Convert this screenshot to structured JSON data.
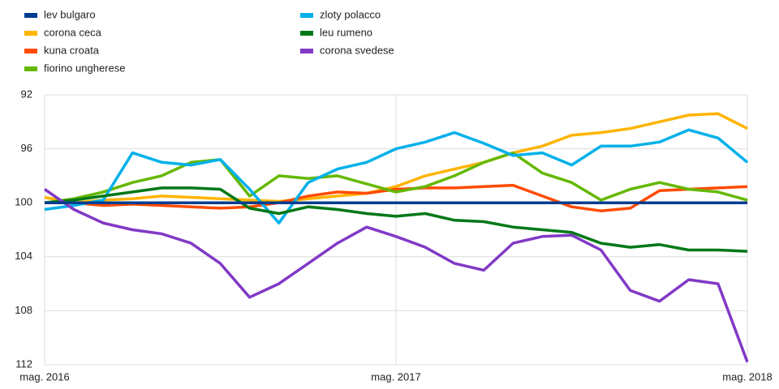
{
  "chart_data": {
    "type": "line",
    "categories": [
      "mag. 2016",
      null,
      null,
      null,
      null,
      null,
      null,
      null,
      null,
      null,
      null,
      null,
      "mag. 2017",
      null,
      null,
      null,
      null,
      null,
      null,
      null,
      null,
      null,
      null,
      null,
      "mag. 2018"
    ],
    "ylim": [
      112,
      92
    ],
    "yticks": [
      92,
      96,
      100,
      104,
      108,
      112
    ],
    "grid": true,
    "series": [
      {
        "name": "lev bulgaro",
        "color": "#003d8f",
        "values": [
          100,
          100,
          100,
          100,
          100,
          100,
          100,
          100,
          100,
          100,
          100,
          100,
          100,
          100,
          100,
          100,
          100,
          100,
          100,
          100,
          100,
          100,
          100,
          100,
          100
        ]
      },
      {
        "name": "corona ceca",
        "color": "#ffb400",
        "values": [
          99.6,
          100,
          99.8,
          99.7,
          99.5,
          99.6,
          99.7,
          99.8,
          99.9,
          99.7,
          99.5,
          99.3,
          98.8,
          98,
          97.5,
          97,
          96.3,
          95.8,
          95,
          94.8,
          94.5,
          94,
          93.5,
          93.4,
          94.5
        ]
      },
      {
        "name": "kuna croata",
        "color": "#ff4b00",
        "values": [
          100,
          100,
          100.2,
          100.1,
          100.2,
          100.3,
          100.4,
          100.3,
          100,
          99.5,
          99.2,
          99.3,
          99,
          98.9,
          98.9,
          98.8,
          98.7,
          99.5,
          100.3,
          100.6,
          100.4,
          99.1,
          99,
          98.9,
          98.8
        ]
      },
      {
        "name": "fiorino ungherese",
        "color": "#65b800",
        "values": [
          100,
          99.7,
          99.2,
          98.5,
          98,
          97,
          96.8,
          99.5,
          98,
          98.2,
          98,
          98.6,
          99.2,
          98.8,
          98,
          97,
          96.3,
          97.8,
          98.5,
          99.8,
          99,
          98.5,
          99,
          99.2,
          99.8
        ]
      },
      {
        "name": "zloty polacco",
        "color": "#00b1ea",
        "values": [
          100.5,
          100.2,
          99.8,
          96.3,
          97,
          97.2,
          96.8,
          99,
          101.5,
          98.5,
          97.5,
          97,
          96,
          95.5,
          94.8,
          95.6,
          96.5,
          96.3,
          97.2,
          95.8,
          95.8,
          95.5,
          94.6,
          95.2,
          97
        ]
      },
      {
        "name": "leu rumeno",
        "color": "#007816",
        "values": [
          100,
          99.8,
          99.5,
          99.2,
          98.9,
          98.9,
          99,
          100.4,
          100.8,
          100.3,
          100.5,
          100.8,
          101,
          100.8,
          101.3,
          101.4,
          101.8,
          102,
          102.2,
          103,
          103.3,
          103.1,
          103.5,
          103.5,
          103.6
        ]
      },
      {
        "name": "corona svedese",
        "color": "#8139c6",
        "values": [
          99,
          100.5,
          101.5,
          102,
          102.3,
          103,
          104.5,
          107,
          106,
          104.5,
          103,
          101.8,
          102.5,
          103.3,
          104.5,
          105,
          103,
          102.5,
          102.4,
          103.5,
          106.5,
          107.3,
          105.7,
          106,
          111.8
        ]
      }
    ]
  }
}
